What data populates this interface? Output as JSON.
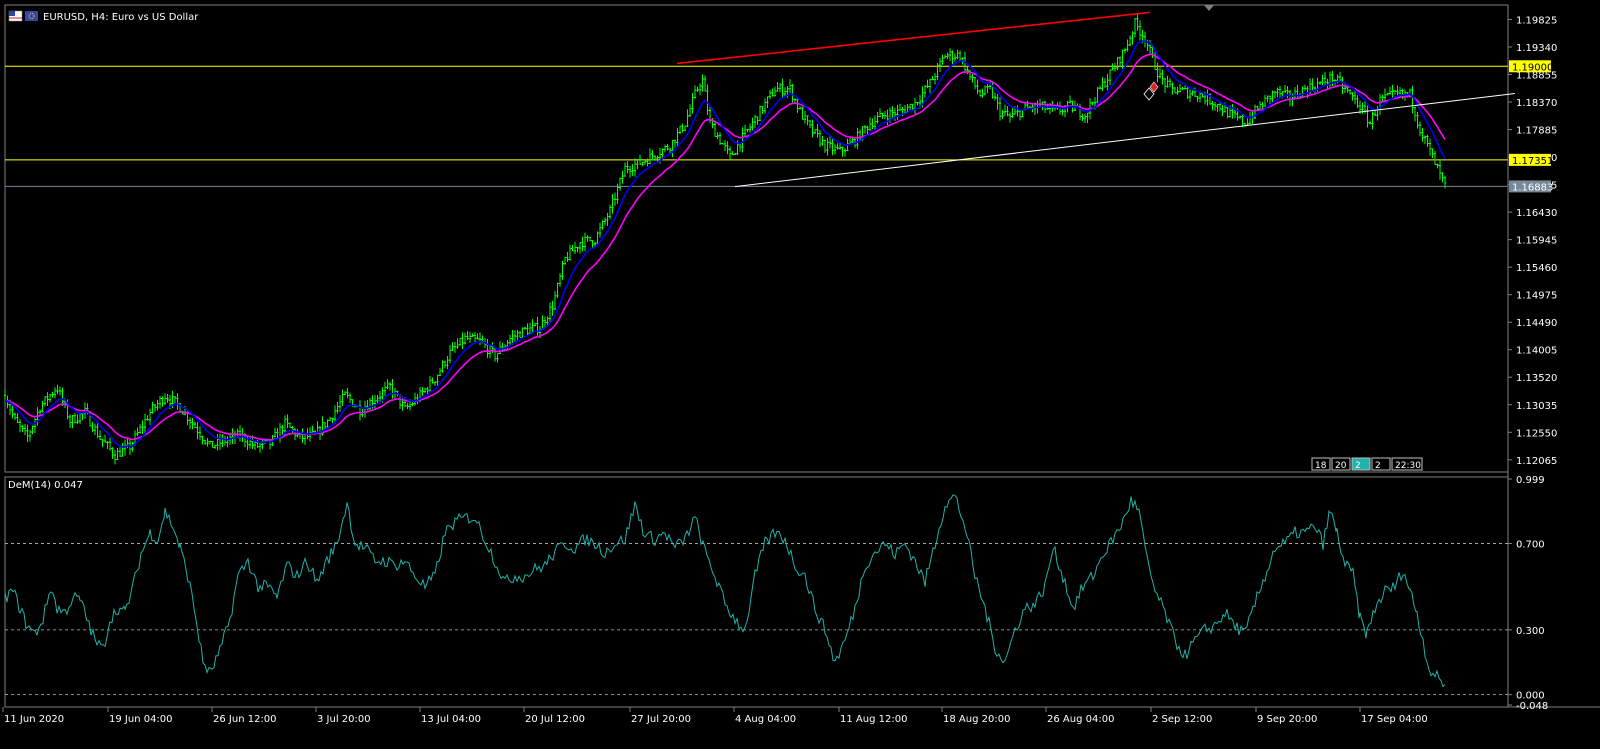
{
  "window": {
    "title": "EURUSD, H4:  Euro vs US Dollar"
  },
  "colors": {
    "background": "#000000",
    "grid_frame": "#808080",
    "candle": "#00ff00",
    "ma_fast": "#0000ff",
    "ma_slow": "#ff00ff",
    "trendline_upper": "#ff0000",
    "trendline_lower": "#ffffff",
    "level_line": "#ffff00",
    "bid_line": "#778899",
    "demarker": "#20b2aa",
    "axis_text": "#ffffff"
  },
  "chart_data": [
    {
      "type": "candlestick",
      "symbol": "EURUSD",
      "timeframe": "H4",
      "title": "EURUSD, H4:  Euro vs US Dollar",
      "y_ticks": [
        "1.19825",
        "1.19340",
        "1.18855",
        "1.18370",
        "1.17885",
        "1.17400",
        "1.16915",
        "1.16430",
        "1.15945",
        "1.15460",
        "1.14975",
        "1.14490",
        "1.14005",
        "1.13520",
        "1.13035",
        "1.12550",
        "1.12065"
      ],
      "ylim": [
        1.1185,
        1.2008
      ],
      "x_ticks": [
        "11 Jun 2020",
        "19 Jun 04:00",
        "26 Jun 12:00",
        "3 Jul 20:00",
        "13 Jul 04:00",
        "20 Jul 12:00",
        "27 Jul 20:00",
        "4 Aug 04:00",
        "11 Aug 12:00",
        "18 Aug 20:00",
        "26 Aug 04:00",
        "2 Sep 12:00",
        "9 Sep 20:00",
        "17 Sep 04:00"
      ],
      "horizontal_levels": [
        {
          "price": 1.19,
          "label": "1.19000",
          "style": "level"
        },
        {
          "price": 1.17351,
          "label": "1.17351",
          "style": "level"
        },
        {
          "price": 1.16883,
          "label": "1.16883",
          "style": "bid"
        }
      ],
      "price_path": [
        [
          0,
          1.132
        ],
        [
          10,
          1.1275
        ],
        [
          22,
          1.1245
        ],
        [
          35,
          1.13
        ],
        [
          52,
          1.1335
        ],
        [
          65,
          1.1275
        ],
        [
          80,
          1.129
        ],
        [
          95,
          1.1245
        ],
        [
          110,
          1.1215
        ],
        [
          125,
          1.123
        ],
        [
          145,
          1.129
        ],
        [
          160,
          1.132
        ],
        [
          175,
          1.13
        ],
        [
          190,
          1.1265
        ],
        [
          205,
          1.123
        ],
        [
          220,
          1.124
        ],
        [
          235,
          1.125
        ],
        [
          250,
          1.123
        ],
        [
          265,
          1.1235
        ],
        [
          280,
          1.127
        ],
        [
          295,
          1.1245
        ],
        [
          310,
          1.125
        ],
        [
          325,
          1.128
        ],
        [
          340,
          1.132
        ],
        [
          355,
          1.1295
        ],
        [
          370,
          1.1315
        ],
        [
          385,
          1.1335
        ],
        [
          400,
          1.1295
        ],
        [
          415,
          1.132
        ],
        [
          430,
          1.135
        ],
        [
          445,
          1.1395
        ],
        [
          460,
          1.142
        ],
        [
          475,
          1.1415
        ],
        [
          490,
          1.139
        ],
        [
          505,
          1.142
        ],
        [
          520,
          1.1435
        ],
        [
          535,
          1.144
        ],
        [
          548,
          1.148
        ],
        [
          560,
          1.156
        ],
        [
          575,
          1.159
        ],
        [
          590,
          1.1595
        ],
        [
          605,
          1.1645
        ],
        [
          620,
          1.172
        ],
        [
          635,
          1.173
        ],
        [
          650,
          1.1745
        ],
        [
          665,
          1.176
        ],
        [
          680,
          1.18
        ],
        [
          690,
          1.185
        ],
        [
          697,
          1.188
        ],
        [
          705,
          1.18
        ],
        [
          715,
          1.177
        ],
        [
          725,
          1.174
        ],
        [
          740,
          1.178
        ],
        [
          755,
          1.182
        ],
        [
          770,
          1.186
        ],
        [
          785,
          1.186
        ],
        [
          795,
          1.182
        ],
        [
          805,
          1.179
        ],
        [
          820,
          1.176
        ],
        [
          835,
          1.175
        ],
        [
          850,
          1.177
        ],
        [
          865,
          1.18
        ],
        [
          880,
          1.1815
        ],
        [
          895,
          1.182
        ],
        [
          910,
          1.1835
        ],
        [
          925,
          1.187
        ],
        [
          940,
          1.192
        ],
        [
          955,
          1.192
        ],
        [
          965,
          1.188
        ],
        [
          975,
          1.185
        ],
        [
          985,
          1.186
        ],
        [
          995,
          1.182
        ],
        [
          1005,
          1.181
        ],
        [
          1020,
          1.1825
        ],
        [
          1035,
          1.183
        ],
        [
          1050,
          1.182
        ],
        [
          1065,
          1.183
        ],
        [
          1080,
          1.1815
        ],
        [
          1095,
          1.186
        ],
        [
          1110,
          1.19
        ],
        [
          1120,
          1.193
        ],
        [
          1130,
          1.1975
        ],
        [
          1140,
          1.195
        ],
        [
          1148,
          1.191
        ],
        [
          1155,
          1.188
        ],
        [
          1165,
          1.186
        ],
        [
          1180,
          1.1855
        ],
        [
          1195,
          1.185
        ],
        [
          1210,
          1.1835
        ],
        [
          1225,
          1.1815
        ],
        [
          1240,
          1.18
        ],
        [
          1255,
          1.183
        ],
        [
          1270,
          1.1855
        ],
        [
          1285,
          1.1845
        ],
        [
          1300,
          1.186
        ],
        [
          1315,
          1.187
        ],
        [
          1328,
          1.188
        ],
        [
          1340,
          1.186
        ],
        [
          1355,
          1.183
        ],
        [
          1365,
          1.18
        ],
        [
          1375,
          1.184
        ],
        [
          1390,
          1.185
        ],
        [
          1405,
          1.185
        ],
        [
          1415,
          1.179
        ],
        [
          1425,
          1.175
        ],
        [
          1432,
          1.172
        ],
        [
          1440,
          1.1688
        ]
      ],
      "trendlines": [
        {
          "name": "upper",
          "from": [
            672,
            1.1905
          ],
          "to": [
            1145,
            1.1995
          ]
        },
        {
          "name": "lower",
          "from": [
            730,
            1.1688
          ],
          "to": [
            1510,
            1.1852
          ]
        }
      ],
      "time_box_labels": [
        "18",
        "20",
        "2",
        "2",
        "22:30"
      ]
    },
    {
      "type": "line",
      "title": "DeM(14) 0.047",
      "series_label": "DeM(14)",
      "current_value": 0.047,
      "y_ticks": [
        "0.999",
        "0.700",
        "0.300",
        "0.000",
        "-0.048"
      ],
      "ylim": [
        -0.048,
        0.999
      ],
      "guide_levels": [
        0.7,
        0.3,
        0.0
      ],
      "path": [
        [
          0,
          0.45
        ],
        [
          8,
          0.48
        ],
        [
          15,
          0.4
        ],
        [
          22,
          0.32
        ],
        [
          30,
          0.28
        ],
        [
          38,
          0.35
        ],
        [
          46,
          0.5
        ],
        [
          52,
          0.4
        ],
        [
          60,
          0.38
        ],
        [
          68,
          0.45
        ],
        [
          75,
          0.44
        ],
        [
          82,
          0.35
        ],
        [
          90,
          0.25
        ],
        [
          98,
          0.21
        ],
        [
          105,
          0.35
        ],
        [
          113,
          0.4
        ],
        [
          120,
          0.38
        ],
        [
          128,
          0.5
        ],
        [
          136,
          0.65
        ],
        [
          145,
          0.75
        ],
        [
          153,
          0.72
        ],
        [
          160,
          0.85
        ],
        [
          168,
          0.78
        ],
        [
          175,
          0.68
        ],
        [
          183,
          0.55
        ],
        [
          190,
          0.38
        ],
        [
          198,
          0.15
        ],
        [
          205,
          0.1
        ],
        [
          215,
          0.2
        ],
        [
          225,
          0.35
        ],
        [
          233,
          0.55
        ],
        [
          243,
          0.62
        ],
        [
          253,
          0.5
        ],
        [
          263,
          0.5
        ],
        [
          272,
          0.45
        ],
        [
          282,
          0.6
        ],
        [
          292,
          0.55
        ],
        [
          302,
          0.62
        ],
        [
          312,
          0.52
        ],
        [
          322,
          0.62
        ],
        [
          332,
          0.7
        ],
        [
          342,
          0.89
        ],
        [
          350,
          0.7
        ],
        [
          360,
          0.68
        ],
        [
          370,
          0.62
        ],
        [
          380,
          0.62
        ],
        [
          390,
          0.6
        ],
        [
          400,
          0.62
        ],
        [
          410,
          0.55
        ],
        [
          420,
          0.5
        ],
        [
          430,
          0.55
        ],
        [
          440,
          0.75
        ],
        [
          450,
          0.8
        ],
        [
          460,
          0.82
        ],
        [
          470,
          0.82
        ],
        [
          480,
          0.72
        ],
        [
          490,
          0.62
        ],
        [
          500,
          0.52
        ],
        [
          510,
          0.55
        ],
        [
          520,
          0.55
        ],
        [
          530,
          0.58
        ],
        [
          540,
          0.6
        ],
        [
          550,
          0.66
        ],
        [
          560,
          0.7
        ],
        [
          570,
          0.68
        ],
        [
          580,
          0.72
        ],
        [
          590,
          0.7
        ],
        [
          600,
          0.66
        ],
        [
          610,
          0.7
        ],
        [
          620,
          0.72
        ],
        [
          630,
          0.88
        ],
        [
          640,
          0.74
        ],
        [
          650,
          0.72
        ],
        [
          660,
          0.75
        ],
        [
          670,
          0.68
        ],
        [
          680,
          0.72
        ],
        [
          690,
          0.82
        ],
        [
          700,
          0.66
        ],
        [
          710,
          0.55
        ],
        [
          720,
          0.42
        ],
        [
          730,
          0.35
        ],
        [
          740,
          0.3
        ],
        [
          750,
          0.55
        ],
        [
          760,
          0.7
        ],
        [
          770,
          0.75
        ],
        [
          780,
          0.72
        ],
        [
          790,
          0.6
        ],
        [
          800,
          0.55
        ],
        [
          810,
          0.4
        ],
        [
          820,
          0.3
        ],
        [
          830,
          0.15
        ],
        [
          840,
          0.25
        ],
        [
          850,
          0.4
        ],
        [
          860,
          0.6
        ],
        [
          870,
          0.66
        ],
        [
          880,
          0.7
        ],
        [
          890,
          0.65
        ],
        [
          900,
          0.7
        ],
        [
          910,
          0.62
        ],
        [
          920,
          0.52
        ],
        [
          930,
          0.7
        ],
        [
          940,
          0.88
        ],
        [
          950,
          0.92
        ],
        [
          960,
          0.78
        ],
        [
          970,
          0.55
        ],
        [
          980,
          0.4
        ],
        [
          990,
          0.22
        ],
        [
          1000,
          0.15
        ],
        [
          1010,
          0.3
        ],
        [
          1020,
          0.4
        ],
        [
          1030,
          0.42
        ],
        [
          1040,
          0.5
        ],
        [
          1048,
          0.68
        ],
        [
          1058,
          0.55
        ],
        [
          1068,
          0.4
        ],
        [
          1078,
          0.5
        ],
        [
          1088,
          0.55
        ],
        [
          1098,
          0.65
        ],
        [
          1108,
          0.72
        ],
        [
          1118,
          0.8
        ],
        [
          1126,
          0.9
        ],
        [
          1134,
          0.85
        ],
        [
          1142,
          0.62
        ],
        [
          1150,
          0.48
        ],
        [
          1160,
          0.38
        ],
        [
          1170,
          0.25
        ],
        [
          1180,
          0.18
        ],
        [
          1190,
          0.25
        ],
        [
          1200,
          0.3
        ],
        [
          1210,
          0.32
        ],
        [
          1220,
          0.38
        ],
        [
          1230,
          0.32
        ],
        [
          1240,
          0.28
        ],
        [
          1250,
          0.42
        ],
        [
          1260,
          0.55
        ],
        [
          1270,
          0.68
        ],
        [
          1280,
          0.7
        ],
        [
          1290,
          0.75
        ],
        [
          1300,
          0.75
        ],
        [
          1310,
          0.78
        ],
        [
          1318,
          0.7
        ],
        [
          1325,
          0.85
        ],
        [
          1332,
          0.75
        ],
        [
          1340,
          0.6
        ],
        [
          1348,
          0.56
        ],
        [
          1355,
          0.35
        ],
        [
          1362,
          0.28
        ],
        [
          1370,
          0.4
        ],
        [
          1380,
          0.48
        ],
        [
          1390,
          0.5
        ],
        [
          1398,
          0.58
        ],
        [
          1405,
          0.48
        ],
        [
          1412,
          0.38
        ],
        [
          1418,
          0.25
        ],
        [
          1424,
          0.12
        ],
        [
          1432,
          0.08
        ],
        [
          1440,
          0.047
        ]
      ]
    }
  ]
}
